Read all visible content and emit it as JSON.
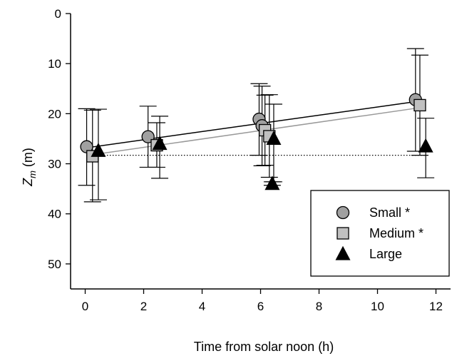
{
  "chart_data": {
    "type": "scatter",
    "xlabel": "Time from solar noon (h)",
    "ylabel_main": "Z",
    "ylabel_sub": "m",
    "ylabel_unit": "(m)",
    "xlim": [
      -0.5,
      12.5
    ],
    "ylim": [
      0,
      55
    ],
    "y_inverted": true,
    "x_ticks": [
      "0",
      "2",
      "4",
      "6",
      "8",
      "10",
      "12"
    ],
    "y_ticks": [
      "0",
      "10",
      "20",
      "30",
      "40",
      "50"
    ],
    "legend_position": "bottom-right",
    "grid": false,
    "series": [
      {
        "name": "Small *",
        "marker": "circle",
        "color": "#a0a0a0",
        "points": [
          {
            "x": 0.05,
            "y": 26.6,
            "ylow": 19.0,
            "yhigh": 34.3
          },
          {
            "x": 2.15,
            "y": 24.6,
            "ylow": 18.5,
            "yhigh": 30.7
          },
          {
            "x": 5.95,
            "y": 21.1,
            "ylow": 14.0,
            "yhigh": 28.3
          },
          {
            "x": 6.05,
            "y": 22.4,
            "ylow": 14.5,
            "yhigh": 30.4
          },
          {
            "x": 11.3,
            "y": 17.2,
            "ylow": 7.0,
            "yhigh": 27.5
          }
        ],
        "fit": {
          "x0": 0.05,
          "y0": 26.8,
          "x1": 11.3,
          "y1": 17.6,
          "color": "#000000"
        }
      },
      {
        "name": "Medium *",
        "marker": "square",
        "color": "#c0c0c0",
        "points": [
          {
            "x": 0.25,
            "y": 28.5,
            "ylow": 19.3,
            "yhigh": 37.6
          },
          {
            "x": 2.45,
            "y": 26.3,
            "ylow": 21.8,
            "yhigh": 30.7
          },
          {
            "x": 6.15,
            "y": 23.3,
            "ylow": 16.3,
            "yhigh": 30.3
          },
          {
            "x": 6.3,
            "y": 24.5,
            "ylow": 16.2,
            "yhigh": 32.7
          },
          {
            "x": 11.45,
            "y": 18.3,
            "ylow": 8.3,
            "yhigh": 28.3
          }
        ],
        "fit": {
          "x0": 0.25,
          "y0": 28.2,
          "x1": 11.45,
          "y1": 18.8,
          "color": "#999999"
        }
      },
      {
        "name": "Large",
        "marker": "triangle",
        "color": "#000000",
        "points": [
          {
            "x": 0.45,
            "y": 27.4,
            "ylow": 19.1,
            "yhigh": 37.2
          },
          {
            "x": 2.55,
            "y": 26.0,
            "ylow": 20.5,
            "yhigh": 32.9
          },
          {
            "x": 6.4,
            "y": 34.0,
            "ylow": 33.6,
            "yhigh": 34.3
          },
          {
            "x": 6.45,
            "y": 25.0,
            "ylow": 18.1,
            "yhigh": 33.6
          },
          {
            "x": 11.65,
            "y": 26.5,
            "ylow": 20.9,
            "yhigh": 32.8
          }
        ],
        "fit": {
          "x0": 0.45,
          "y0": 28.3,
          "x1": 11.65,
          "y1": 28.3,
          "color": "#000000",
          "dash": "dotted"
        }
      }
    ]
  }
}
